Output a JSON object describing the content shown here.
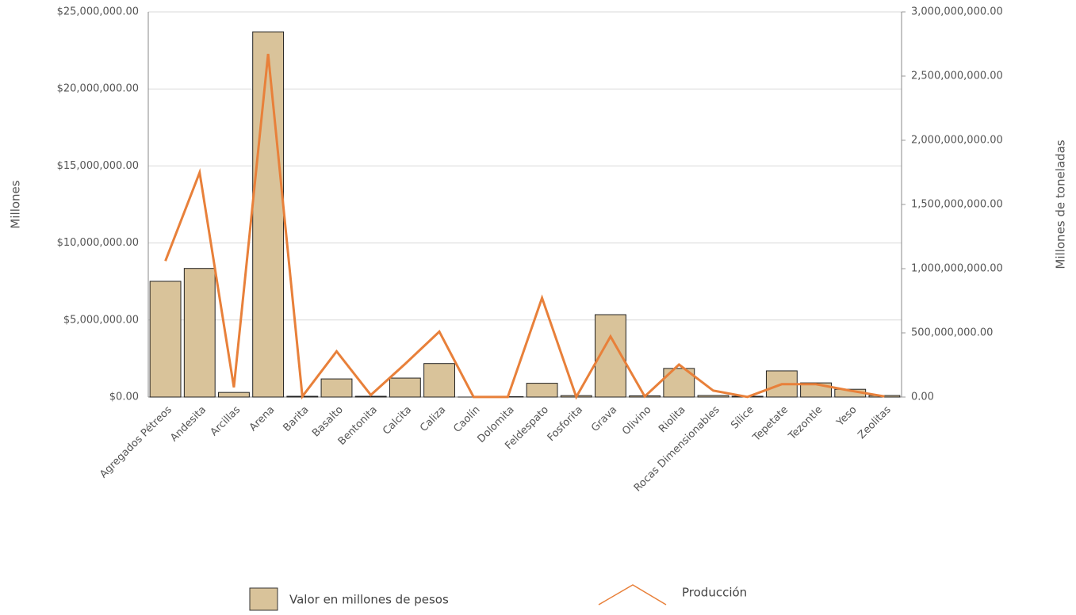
{
  "chart_data": {
    "type": "bar",
    "ylabel": "Millones",
    "y2label": "Millones de toneladas",
    "categories": [
      "Agregados Pétreos",
      "Andesita",
      "Arcillas",
      "Arena",
      "Barita",
      "Basalto",
      "Bentonita",
      "Calcita",
      "Caliza",
      "Caolín",
      "Dolomita",
      "Feldespato",
      "Fosforita",
      "Grava",
      "Olivino",
      "Riolita",
      "Rocas Dimensionables",
      "Sílice",
      "Tepetate",
      "Tezontle",
      "Yeso",
      "Zeolitas"
    ],
    "series": [
      {
        "name": "Valor en millones de pesos",
        "type": "bar",
        "color": "#d9c39a",
        "axis": "y",
        "values": [
          7512705,
          8349000,
          300000,
          23705799,
          50000,
          1178190,
          50000,
          1231680,
          2176000,
          973,
          24765,
          895676,
          93000,
          5347929,
          80000,
          1859000,
          100000,
          50000,
          1700000,
          920000,
          504676,
          100000
        ]
      },
      {
        "name": "Producción",
        "type": "line",
        "color": "#e8803a",
        "axis": "y2",
        "values": [
          1059906923,
          1748578131,
          75631000,
          2672555000,
          5000000,
          355939000,
          16227000,
          257640000,
          509385574,
          1000000,
          1000000,
          772074303,
          1000000,
          471634071,
          5000000,
          253000000,
          50000000,
          1000000,
          100000000,
          100000000,
          50000000,
          5000000
        ]
      }
    ],
    "ylim": [
      0,
      25000000
    ],
    "yticks": [
      {
        "value": 0,
        "label": "$0.00"
      },
      {
        "value": 5000000,
        "label": "$5,000,000.00"
      },
      {
        "value": 10000000,
        "label": "$10,000,000.00"
      },
      {
        "value": 15000000,
        "label": "$15,000,000.00"
      },
      {
        "value": 20000000,
        "label": "$20,000,000.00"
      },
      {
        "value": 25000000,
        "label": "$25,000,000.00"
      }
    ],
    "y2lim": [
      0,
      3000000000
    ],
    "y2ticks": [
      {
        "value": 0,
        "label": "0.00"
      },
      {
        "value": 500000000,
        "label": "500,000,000.00"
      },
      {
        "value": 1000000000,
        "label": "1,000,000,000.00"
      },
      {
        "value": 1500000000,
        "label": "1,500,000,000.00"
      },
      {
        "value": 2000000000,
        "label": "2,000,000,000.00"
      },
      {
        "value": 2500000000,
        "label": "2,500,000,000.00"
      },
      {
        "value": 3000000000,
        "label": "3,000,000,000.00"
      }
    ],
    "grid": true
  }
}
